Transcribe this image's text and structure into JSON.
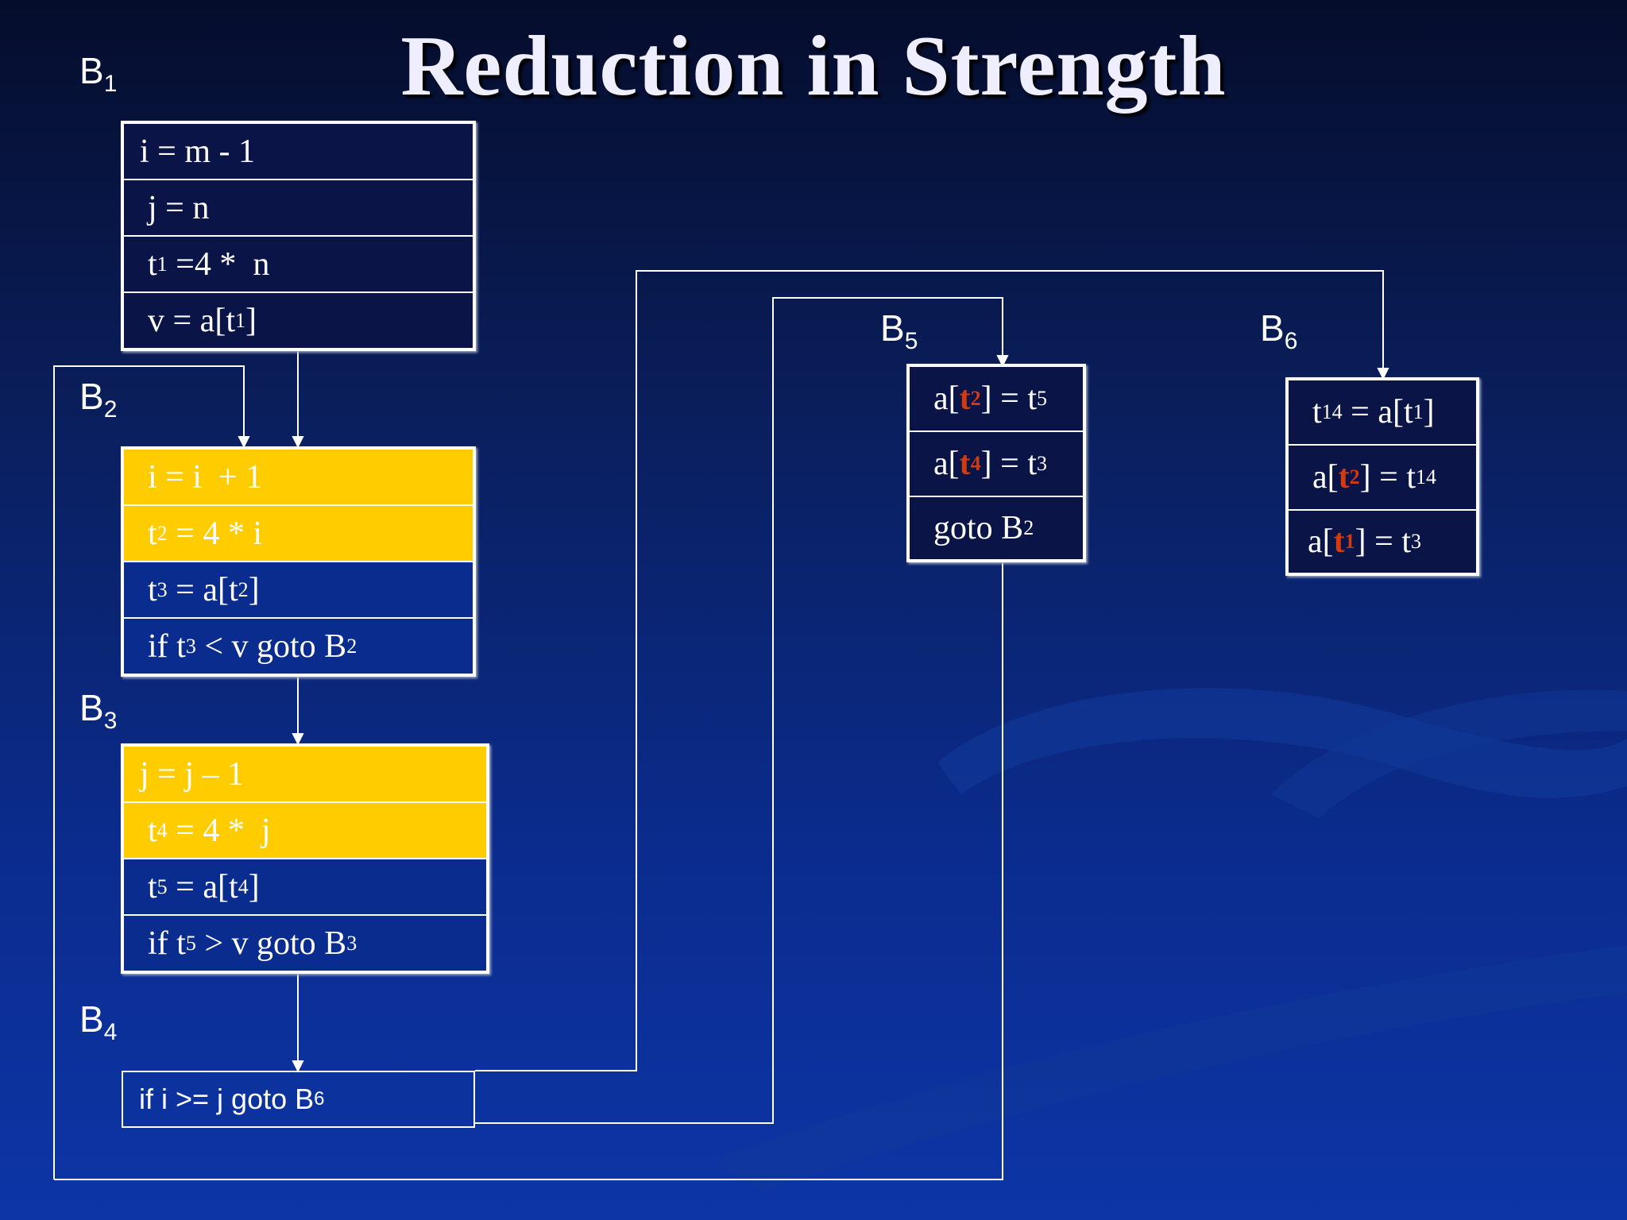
{
  "title": "Reduction in Strength",
  "colors": {
    "highlight": "#ffcc00",
    "accent_red": "#d23a10",
    "block_dark": "#0a1447",
    "block_blue": "#0a2c8e"
  },
  "blocks": {
    "b1": {
      "label": "B",
      "sub": "1",
      "rows": [
        {
          "pre": "i = m - 1"
        },
        {
          "pre": "j = n"
        },
        {
          "pre": "t",
          "sub": "1",
          "post": " =4 *  n"
        },
        {
          "pre": "v = a[t",
          "sub": "1",
          "post": "]"
        }
      ]
    },
    "b2": {
      "label": "B",
      "sub": "2",
      "rows": [
        {
          "pre": "i = i  + 1"
        },
        {
          "pre": "t",
          "sub": "2",
          "post": " = 4 * i"
        },
        {
          "pre": "t",
          "sub": "3",
          "post": " = a[t",
          "sub2": "2",
          "post2": "]"
        },
        {
          "pre": "if t",
          "sub": "3",
          "post": " < v goto B",
          "sub2": "2"
        }
      ]
    },
    "b3": {
      "label": "B",
      "sub": "3",
      "rows": [
        {
          "pre": "j = j – 1"
        },
        {
          "pre": "t",
          "sub": "4",
          "post": " = 4 *  j"
        },
        {
          "pre": "t",
          "sub": "5",
          "post": " = a[t",
          "sub2": "4",
          "post2": "]"
        },
        {
          "pre": "if t",
          "sub": "5",
          "post": " > v goto B",
          "sub2": "3"
        }
      ]
    },
    "b4": {
      "label": "B",
      "sub": "4",
      "text": "if i >= j goto B",
      "text_sub": "6"
    },
    "b5": {
      "label": "B",
      "sub": "5",
      "rows": [
        {
          "pre": "a[",
          "red": "t",
          "red_sub": "2",
          "post": "] = t",
          "sub": "5"
        },
        {
          "pre": "a[",
          "red": "t",
          "red_sub": "4",
          "post": "] = t",
          "sub": "3"
        },
        {
          "pre": "goto B",
          "sub": "2"
        }
      ]
    },
    "b6": {
      "label": "B",
      "sub": "6",
      "rows": [
        {
          "pre": "t",
          "sub": "14",
          "post": " = a[t",
          "sub2": "1",
          "post2": "]"
        },
        {
          "pre": "a[",
          "red": "t",
          "red_sub": "2",
          "post": "] = t",
          "sub": "14"
        },
        {
          "pre": "a[",
          "red": "t",
          "red_sub": "1",
          "post": "] = t",
          "sub": "3"
        }
      ]
    }
  }
}
